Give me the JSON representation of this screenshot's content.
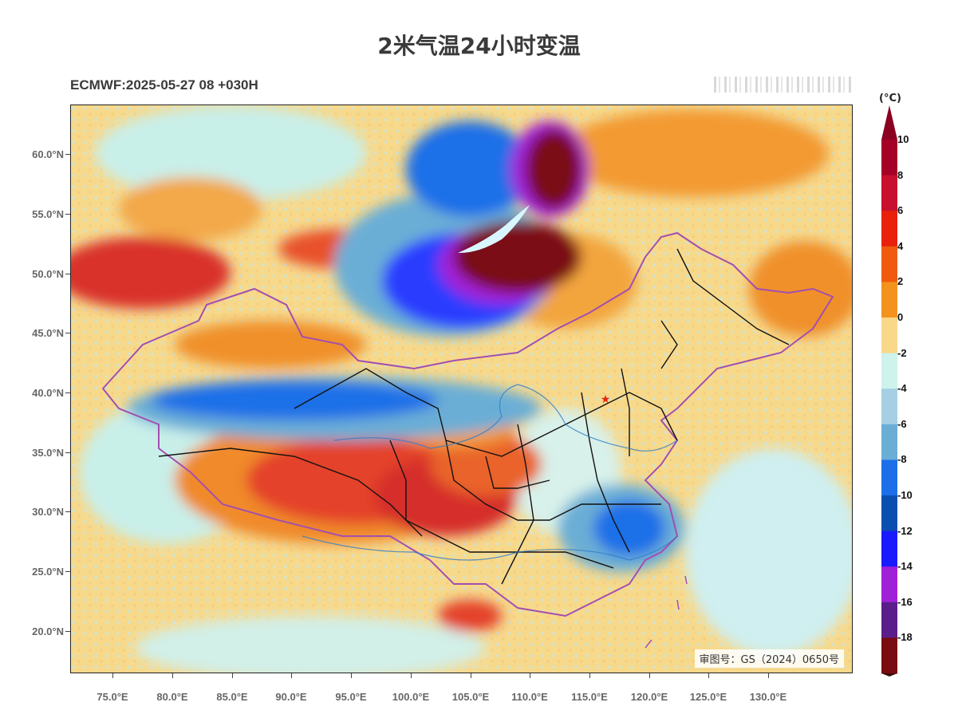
{
  "title": "2米气温24小时变温",
  "subtitle": "ECMWF:2025-05-27 08 +030H",
  "map": {
    "lat_labels": [
      "60.0°N",
      "55.0°N",
      "50.0°N",
      "45.0°N",
      "40.0°N",
      "35.0°N",
      "30.0°N",
      "25.0°N",
      "20.0°N"
    ],
    "lon_labels": [
      "75.0°E",
      "80.0°E",
      "85.0°E",
      "90.0°E",
      "95.0°E",
      "100.0°E",
      "105.0°E",
      "110.0°E",
      "115.0°E",
      "120.0°E",
      "125.0°E",
      "130.0°E"
    ],
    "credit": "审图号：GS（2024）0650号",
    "marker": "capital-star-icon"
  },
  "colorbar": {
    "unit": "(°C)",
    "labels": [
      "10",
      "8",
      "6",
      "4",
      "2",
      "0",
      "-2",
      "-4",
      "-6",
      "-8",
      "-10",
      "-12",
      "-14",
      "-16",
      "-18"
    ],
    "colors": [
      "#a50026",
      "#c8102e",
      "#e8200c",
      "#f05a0c",
      "#f3921d",
      "#f9d889",
      "#cdf3ec",
      "#a5cfe3",
      "#6aaed6",
      "#1c6fe8",
      "#0a4fb0",
      "#1a1aff",
      "#a020d8",
      "#5a1e8a",
      "#7a0c12"
    ],
    "top_color": "#8b0020",
    "bottom_color": "#3a0c0c"
  }
}
